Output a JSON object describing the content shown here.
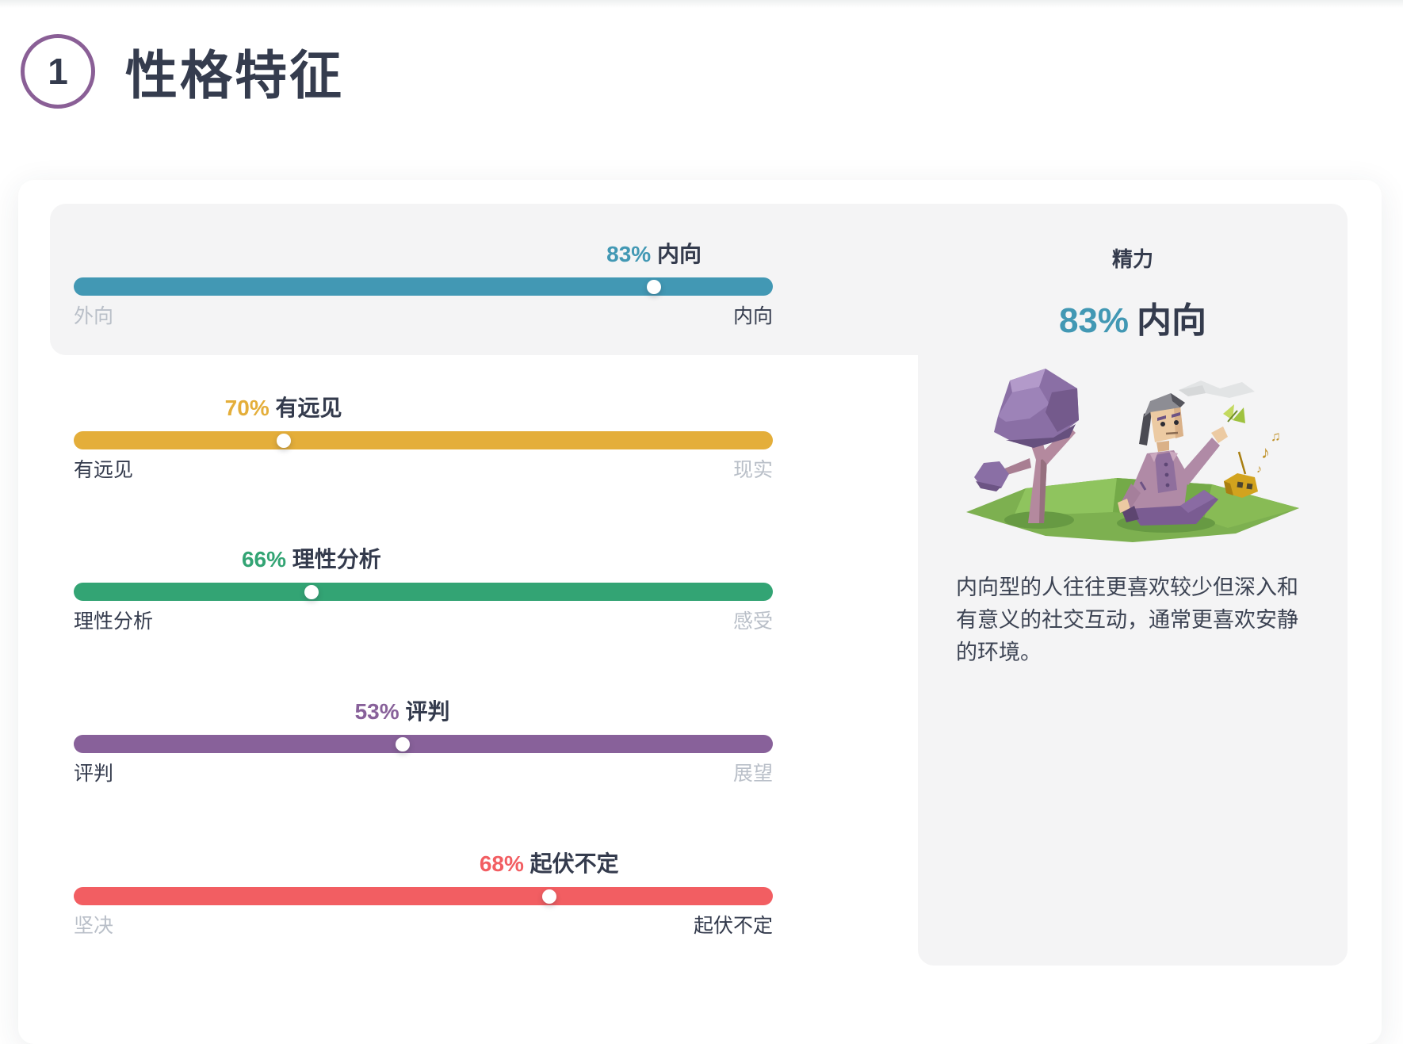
{
  "header": {
    "section_number": "1",
    "title": "性格特征"
  },
  "traits": [
    {
      "percent": 83,
      "winner_label": "内向",
      "left_label": "外向",
      "right_label": "内向",
      "winner_side": "right",
      "color": "#4298b4",
      "highlighted": true
    },
    {
      "percent": 70,
      "winner_label": "有远见",
      "left_label": "有远见",
      "right_label": "现实",
      "winner_side": "left",
      "color": "#e4ae3a",
      "highlighted": false
    },
    {
      "percent": 66,
      "winner_label": "理性分析",
      "left_label": "理性分析",
      "right_label": "感受",
      "winner_side": "left",
      "color": "#33a474",
      "highlighted": false
    },
    {
      "percent": 53,
      "winner_label": "评判",
      "left_label": "评判",
      "right_label": "展望",
      "winner_side": "left",
      "color": "#88619a",
      "highlighted": false
    },
    {
      "percent": 68,
      "winner_label": "起伏不定",
      "left_label": "坚决",
      "right_label": "起伏不定",
      "winner_side": "right",
      "color": "#f25e62",
      "highlighted": false
    }
  ],
  "detail_panel": {
    "category": "精力",
    "percent": "83%",
    "winner": "内向",
    "accent_color": "#4298b4",
    "description": "内向型的人往往更喜欢较少但深入和有意义的社交互动，通常更喜欢安静的环境。",
    "illustration": "person-sitting-under-purple-tree-with-butterfly-and-radio"
  },
  "colors": {
    "highlight_background": "#f4f4f5",
    "dark_text": "#343b4d",
    "muted_text": "#b9bfc8",
    "section_circle": "#8a5f96"
  }
}
